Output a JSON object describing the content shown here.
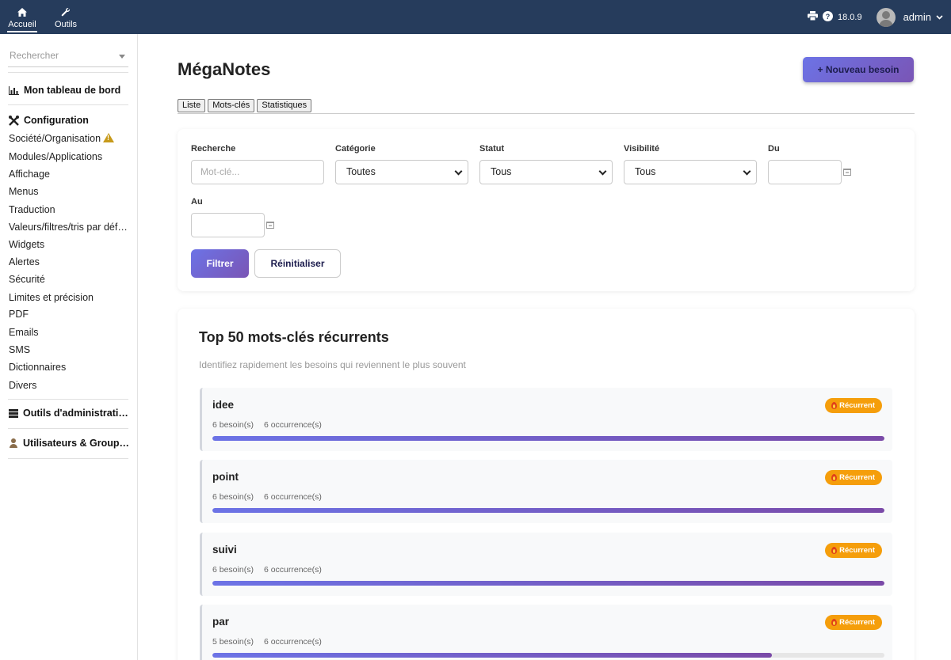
{
  "topbar": {
    "nav": [
      {
        "label": "Accueil",
        "icon": "home-icon"
      },
      {
        "label": "Outils",
        "icon": "wrench-icon"
      }
    ],
    "version": "18.0.9",
    "user": "admin"
  },
  "sidebar": {
    "search_placeholder": "Rechercher",
    "dashboard": "Mon tableau de bord",
    "config_heading": "Configuration",
    "config_items": [
      "Société/Organisation",
      "Modules/Applications",
      "Affichage",
      "Menus",
      "Traduction",
      "Valeurs/filtres/tris par déf…",
      "Widgets",
      "Alertes",
      "Sécurité",
      "Limites et précision",
      "PDF",
      "Emails",
      "SMS",
      "Dictionnaires",
      "Divers"
    ],
    "admin_tools": "Outils d'administrati…",
    "users_groups": "Utilisateurs & Group…"
  },
  "main": {
    "title": "MégaNotes",
    "new_button": "+ Nouveau besoin",
    "tabs": [
      "Liste",
      "Mots-clés",
      "Statistiques"
    ]
  },
  "filters": {
    "search_label": "Recherche",
    "search_placeholder": "Mot-clé...",
    "category_label": "Catégorie",
    "category_value": "Toutes",
    "status_label": "Statut",
    "status_value": "Tous",
    "visibility_label": "Visibilité",
    "visibility_value": "Tous",
    "from_label": "Du",
    "to_label": "Au",
    "filter_button": "Filtrer",
    "reset_button": "Réinitialiser"
  },
  "keywords": {
    "title": "Top 50 mots-clés récurrents",
    "subtitle": "Identifiez rapidement les besoins qui reviennent le plus souvent",
    "badge_label": "Récurrent",
    "items": [
      {
        "name": "idee",
        "needs": "6 besoin(s)",
        "occurrences": "6 occurrence(s)",
        "progress": 1.0
      },
      {
        "name": "point",
        "needs": "6 besoin(s)",
        "occurrences": "6 occurrence(s)",
        "progress": 1.0
      },
      {
        "name": "suivi",
        "needs": "6 besoin(s)",
        "occurrences": "6 occurrence(s)",
        "progress": 1.0
      },
      {
        "name": "par",
        "needs": "5 besoin(s)",
        "occurrences": "6 occurrence(s)",
        "progress": 0.833
      }
    ]
  },
  "colors": {
    "topbar": "#263c5c",
    "accent_start": "#6c73e6",
    "accent_end": "#7a55b5",
    "badge": "#f59e0b",
    "warning": "#c79a1a"
  }
}
